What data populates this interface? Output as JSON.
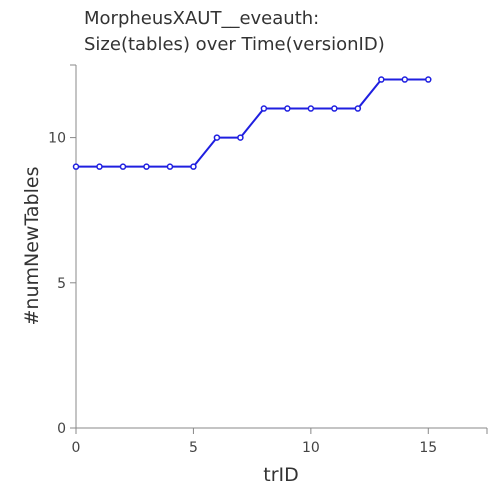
{
  "chart_data": {
    "type": "line",
    "title_lines": [
      "MorpheusXAUT__eveauth:",
      "Size(tables) over Time(versionID)"
    ],
    "xlabel": "trID",
    "ylabel": "#numNewTables",
    "xlim": [
      0,
      17.5
    ],
    "ylim": [
      0,
      12.5
    ],
    "x_ticks": [
      0,
      5,
      10,
      15
    ],
    "x_tick_labels": [
      "0",
      "5",
      "10",
      "15"
    ],
    "y_ticks": [
      0,
      5,
      10
    ],
    "y_tick_labels": [
      "0",
      "5",
      "10"
    ],
    "grid": false,
    "series": [
      {
        "x": [
          0,
          1,
          2,
          3,
          4,
          5,
          6,
          7,
          8,
          9,
          10,
          11,
          12,
          13,
          14,
          15
        ],
        "values": [
          9,
          9,
          9,
          9,
          9,
          9,
          10,
          10,
          11,
          11,
          11,
          11,
          11,
          12,
          12,
          12
        ],
        "color": "#1f1fe0"
      }
    ]
  }
}
